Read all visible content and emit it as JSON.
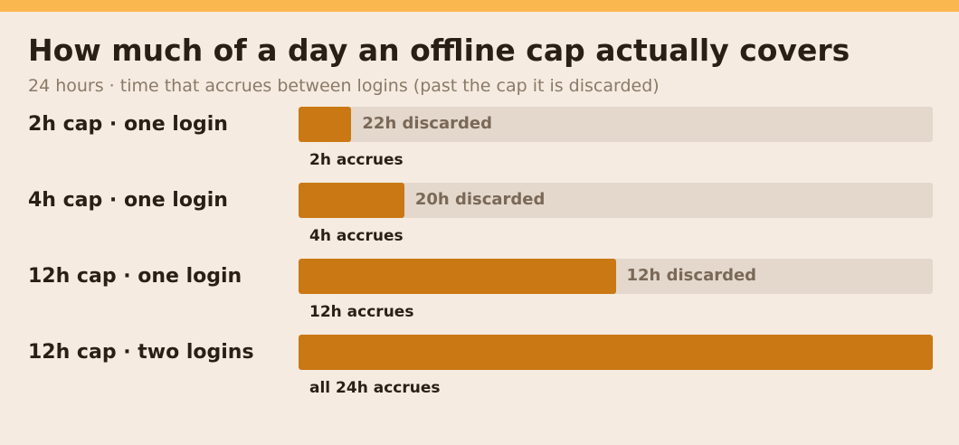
{
  "colors": {
    "top_strip": "#fbb74f",
    "background": "#f5ebe0",
    "accrued": "#c97814",
    "discarded": "#e3d8cb"
  },
  "chart_data": {
    "type": "bar",
    "orientation": "horizontal",
    "stacked": true,
    "title": "How much of a day an offline cap actually covers",
    "subtitle": "24 hours · time that accrues between logins (past the cap it is discarded)",
    "unit": "hours",
    "xlim": [
      0,
      24
    ],
    "categories": [
      "2h cap · one login",
      "4h cap · one login",
      "12h cap · one login",
      "12h cap · two logins"
    ],
    "series": [
      {
        "values": [
          2,
          4,
          12,
          24
        ],
        "color": "#c97814"
      },
      {
        "values": [
          22,
          20,
          12,
          0
        ],
        "color": "#e3d8cb"
      }
    ],
    "accrued_labels": [
      "2h accrues",
      "4h accrues",
      "12h accrues",
      "all 24h accrues"
    ],
    "discarded_labels": [
      "22h discarded",
      "20h discarded",
      "12h discarded",
      ""
    ]
  }
}
